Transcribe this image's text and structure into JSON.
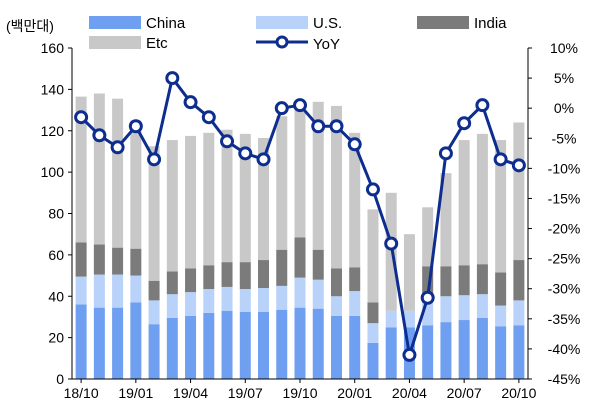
{
  "chart_data": {
    "type": "bar",
    "unit_label": "(백만대)",
    "x": [
      "18/10",
      "18/11",
      "18/12",
      "19/01",
      "19/02",
      "19/03",
      "19/04",
      "19/05",
      "19/06",
      "19/07",
      "19/08",
      "19/09",
      "19/10",
      "19/11",
      "19/12",
      "20/01",
      "20/02",
      "20/03",
      "20/04",
      "20/05",
      "20/06",
      "20/07",
      "20/08",
      "20/09",
      "20/10"
    ],
    "xticks": [
      "18/10",
      "19/01",
      "19/04",
      "19/07",
      "19/10",
      "20/01",
      "20/04",
      "20/07",
      "20/10"
    ],
    "series": [
      {
        "name": "China",
        "kind": "stacked-bar",
        "color": "#6f9ff0",
        "values": [
          36,
          34.5,
          34.5,
          37,
          26.5,
          29.5,
          30.5,
          32,
          33,
          32.5,
          32.5,
          33.5,
          34.5,
          34,
          30.5,
          30.5,
          17.5,
          25,
          25,
          26,
          27.5,
          28.5,
          29.5,
          25.5,
          26
        ]
      },
      {
        "name": "U.S.",
        "kind": "stacked-bar",
        "color": "#b8d2fa",
        "values": [
          13.5,
          16,
          16,
          13,
          11.5,
          11.5,
          11.5,
          11.5,
          11.5,
          11,
          11.5,
          11.5,
          14.5,
          14,
          9.5,
          12,
          9.5,
          8,
          8,
          12.5,
          12.5,
          12,
          11.5,
          10,
          12
        ]
      },
      {
        "name": "India",
        "kind": "stacked-bar",
        "color": "#7b7b7b",
        "values": [
          16.5,
          14.5,
          13,
          13,
          9.5,
          11,
          11.5,
          11.5,
          12,
          13,
          13.5,
          17.5,
          19.5,
          14.5,
          13.5,
          11.5,
          10,
          0,
          0,
          16,
          14.5,
          14.5,
          14.5,
          16,
          19.5
        ]
      },
      {
        "name": "Etc",
        "kind": "stacked-bar",
        "color": "#c8c8c8",
        "values": [
          70.5,
          73,
          72,
          62,
          65,
          63.5,
          64,
          64,
          64,
          62,
          59,
          64.5,
          66,
          71.5,
          78.5,
          65,
          45,
          57,
          37,
          28.5,
          45,
          60.5,
          63,
          64,
          66.5
        ]
      },
      {
        "name": "YoY",
        "kind": "line",
        "axis": "right",
        "color": "#0d2d8f",
        "values": [
          -1.5,
          -4.5,
          -6.5,
          -3,
          -8.5,
          5,
          1,
          -1.5,
          -5.5,
          -7.5,
          -8.5,
          0,
          0.5,
          -3,
          -3,
          -6,
          -13.5,
          -22.5,
          -41,
          -31.5,
          -7.5,
          -2.5,
          0.5,
          -8.5,
          -9.5
        ]
      }
    ],
    "ylim": [
      0,
      160
    ],
    "yticks": [
      "0",
      "20",
      "40",
      "60",
      "80",
      "100",
      "120",
      "140",
      "160"
    ],
    "y2lim": [
      -45,
      10
    ],
    "y2ticks": [
      "10%",
      "5%",
      "0%",
      "-5%",
      "-10%",
      "-15%",
      "-20%",
      "-25%",
      "-30%",
      "-35%",
      "-40%",
      "-45%"
    ],
    "legend": {
      "position": "top",
      "entries": [
        "China",
        "U.S.",
        "India",
        "Etc",
        "YoY"
      ]
    },
    "grid": false
  }
}
